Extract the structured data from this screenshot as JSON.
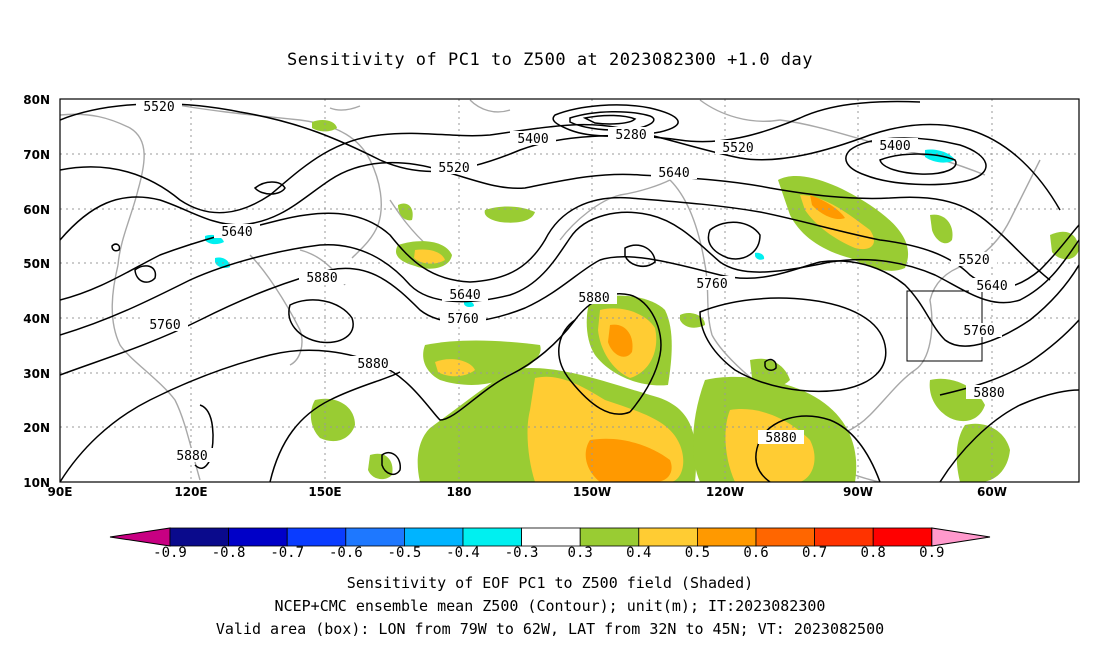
{
  "title": "Sensitivity of PC1 to Z500 at 2023082300 +1.0 day",
  "lat_labels": [
    "80N",
    "70N",
    "60N",
    "50N",
    "40N",
    "30N",
    "20N",
    "10N"
  ],
  "lon_labels": [
    "90E",
    "120E",
    "150E",
    "180",
    "150W",
    "120W",
    "90W",
    "60W"
  ],
  "contour_labels": [
    "5520",
    "5400",
    "5280",
    "5520",
    "5400",
    "5520",
    "5640",
    "5640",
    "5880",
    "5760",
    "5640",
    "5760",
    "5880",
    "5760",
    "5880",
    "5760",
    "5520",
    "5640",
    "5880",
    "5880",
    "5880"
  ],
  "colorbar": {
    "labels": [
      "-0.9",
      "-0.8",
      "-0.7",
      "-0.6",
      "-0.5",
      "-0.4",
      "-0.3",
      "0.3",
      "0.4",
      "0.5",
      "0.6",
      "0.7",
      "0.8",
      "0.9"
    ],
    "colors": [
      "#0a0a8c",
      "#0000c8",
      "#0a3cff",
      "#1e78ff",
      "#00b4ff",
      "#00f0f0",
      "#ffffff",
      "#99cc33",
      "#ffcc33",
      "#ff9900",
      "#ff6600",
      "#ff3300",
      "#ff0000"
    ],
    "low_extension_color": "#c80082",
    "high_extension_color": "#ff99cc"
  },
  "footer": {
    "line1": "Sensitivity of EOF PC1 to Z500 field (Shaded)",
    "line2": "NCEP+CMC ensemble mean Z500 (Contour); unit(m); IT:2023082300",
    "line3": "Valid area (box): LON from 79W to 62W, LAT from 32N to 45N; VT: 2023082500"
  }
}
